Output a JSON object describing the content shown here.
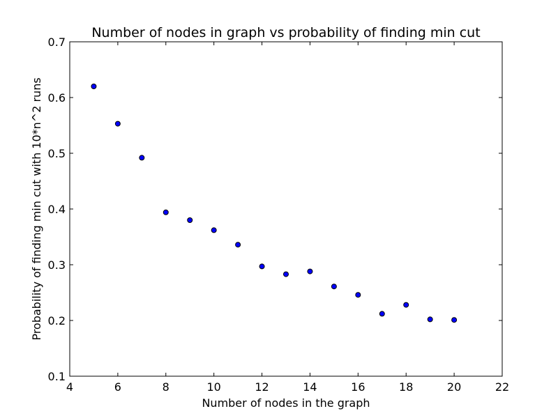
{
  "chart_data": {
    "type": "scatter",
    "title": "Number of nodes in graph vs probability of finding min cut",
    "xlabel": "Number of nodes in the graph",
    "ylabel": "Probability of finding min cut with 10*n^2 runs",
    "xlim": [
      4,
      22
    ],
    "ylim": [
      0.1,
      0.7
    ],
    "xticks": [
      "4",
      "6",
      "8",
      "10",
      "12",
      "14",
      "16",
      "18",
      "20",
      "22"
    ],
    "yticks": [
      "0.1",
      "0.2",
      "0.3",
      "0.4",
      "0.5",
      "0.6",
      "0.7"
    ],
    "grid": false,
    "marker_color": "#0000ff",
    "marker_edge_color": "#000000",
    "points": [
      {
        "x": 5,
        "y": 0.62
      },
      {
        "x": 6,
        "y": 0.553
      },
      {
        "x": 7,
        "y": 0.492
      },
      {
        "x": 8,
        "y": 0.394
      },
      {
        "x": 9,
        "y": 0.38
      },
      {
        "x": 10,
        "y": 0.362
      },
      {
        "x": 11,
        "y": 0.336
      },
      {
        "x": 12,
        "y": 0.297
      },
      {
        "x": 13,
        "y": 0.283
      },
      {
        "x": 14,
        "y": 0.288
      },
      {
        "x": 15,
        "y": 0.261
      },
      {
        "x": 16,
        "y": 0.246
      },
      {
        "x": 17,
        "y": 0.212
      },
      {
        "x": 18,
        "y": 0.228
      },
      {
        "x": 19,
        "y": 0.202
      },
      {
        "x": 20,
        "y": 0.201
      }
    ]
  }
}
